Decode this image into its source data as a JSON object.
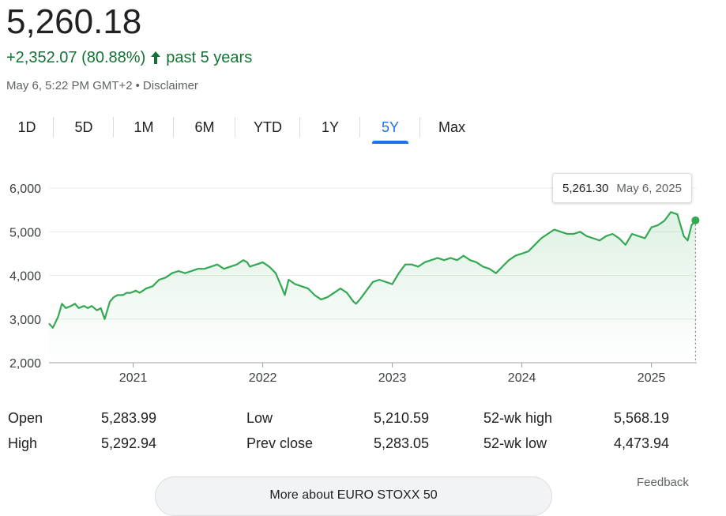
{
  "quote": {
    "price": "5,260.18",
    "change": "+2,352.07 (80.88%)",
    "change_period": "past 5 years",
    "timestamp": "May 6, 5:22 PM GMT+2",
    "separator": "•",
    "disclaimer": "Disclaimer",
    "positive_color": "#137333"
  },
  "tabs": [
    {
      "label": "1D"
    },
    {
      "label": "5D"
    },
    {
      "label": "1M"
    },
    {
      "label": "6M"
    },
    {
      "label": "YTD"
    },
    {
      "label": "1Y"
    },
    {
      "label": "5Y",
      "active": true
    },
    {
      "label": "Max"
    }
  ],
  "tooltip": {
    "value": "5,261.30",
    "date": "May 6, 2025"
  },
  "stats": {
    "open_label": "Open",
    "open_value": "5,283.99",
    "high_label": "High",
    "high_value": "5,292.94",
    "low_label": "Low",
    "low_value": "5,210.59",
    "prev_close_label": "Prev close",
    "prev_close_value": "5,283.05",
    "wk52_high_label": "52-wk high",
    "wk52_high_value": "5,568.19",
    "wk52_low_label": "52-wk low",
    "wk52_low_value": "4,473.94"
  },
  "more_about": "More about EURO STOXX 50",
  "feedback": "Feedback",
  "chart_data": {
    "type": "area",
    "line_color": "#34a853",
    "xlim": [
      2020.35,
      2025.35
    ],
    "ylim": [
      2000,
      6000
    ],
    "y_ticks": [
      2000,
      3000,
      4000,
      5000,
      6000
    ],
    "y_tick_labels": [
      "2,000",
      "3,000",
      "4,000",
      "5,000",
      "6,000"
    ],
    "x_ticks": [
      2021,
      2022,
      2023,
      2024,
      2025
    ],
    "x_tick_labels": [
      "2021",
      "2022",
      "2023",
      "2024",
      "2025"
    ],
    "grid": true,
    "series": [
      {
        "x": [
          2020.35,
          2020.38,
          2020.42,
          2020.45,
          2020.48,
          2020.52,
          2020.55,
          2020.58,
          2020.62,
          2020.65,
          2020.68,
          2020.72,
          2020.75,
          2020.78,
          2020.82,
          2020.85,
          2020.88,
          2020.92,
          2020.95,
          2020.98,
          2021.02,
          2021.05,
          2021.1,
          2021.15,
          2021.2,
          2021.25,
          2021.3,
          2021.35,
          2021.4,
          2021.45,
          2021.5,
          2021.55,
          2021.6,
          2021.65,
          2021.7,
          2021.75,
          2021.8,
          2021.85,
          2021.88,
          2021.9,
          2021.95,
          2022.0,
          2022.05,
          2022.1,
          2022.15,
          2022.17,
          2022.2,
          2022.25,
          2022.3,
          2022.35,
          2022.4,
          2022.45,
          2022.5,
          2022.55,
          2022.6,
          2022.65,
          2022.7,
          2022.72,
          2022.75,
          2022.8,
          2022.85,
          2022.9,
          2022.95,
          2023.0,
          2023.05,
          2023.1,
          2023.15,
          2023.2,
          2023.25,
          2023.3,
          2023.35,
          2023.4,
          2023.45,
          2023.5,
          2023.55,
          2023.6,
          2023.65,
          2023.7,
          2023.75,
          2023.8,
          2023.85,
          2023.9,
          2023.95,
          2024.0,
          2024.05,
          2024.1,
          2024.15,
          2024.2,
          2024.25,
          2024.3,
          2024.35,
          2024.4,
          2024.45,
          2024.5,
          2024.55,
          2024.6,
          2024.65,
          2024.7,
          2024.75,
          2024.8,
          2024.85,
          2024.9,
          2024.95,
          2025.0,
          2025.05,
          2025.1,
          2025.15,
          2025.2,
          2025.25,
          2025.28,
          2025.31,
          2025.34
        ],
        "y": [
          2900,
          2800,
          3050,
          3350,
          3250,
          3300,
          3350,
          3250,
          3300,
          3250,
          3300,
          3200,
          3250,
          3000,
          3400,
          3500,
          3550,
          3550,
          3600,
          3600,
          3650,
          3600,
          3700,
          3750,
          3900,
          3950,
          4050,
          4100,
          4050,
          4100,
          4150,
          4150,
          4200,
          4250,
          4150,
          4200,
          4250,
          4350,
          4300,
          4200,
          4250,
          4300,
          4200,
          4050,
          3700,
          3550,
          3900,
          3800,
          3750,
          3700,
          3550,
          3450,
          3500,
          3600,
          3700,
          3600,
          3400,
          3350,
          3450,
          3650,
          3850,
          3900,
          3850,
          3800,
          4050,
          4250,
          4250,
          4200,
          4300,
          4350,
          4400,
          4350,
          4400,
          4350,
          4450,
          4350,
          4300,
          4200,
          4150,
          4050,
          4200,
          4350,
          4450,
          4500,
          4550,
          4700,
          4850,
          4950,
          5050,
          5000,
          4950,
          4950,
          5000,
          4900,
          4850,
          4800,
          4900,
          4950,
          4850,
          4700,
          4950,
          4900,
          4850,
          5100,
          5150,
          5250,
          5450,
          5400,
          4900,
          4800,
          5150,
          5261.3
        ]
      }
    ],
    "highlight_point": {
      "x": 2025.34,
      "y": 5261.3
    }
  }
}
